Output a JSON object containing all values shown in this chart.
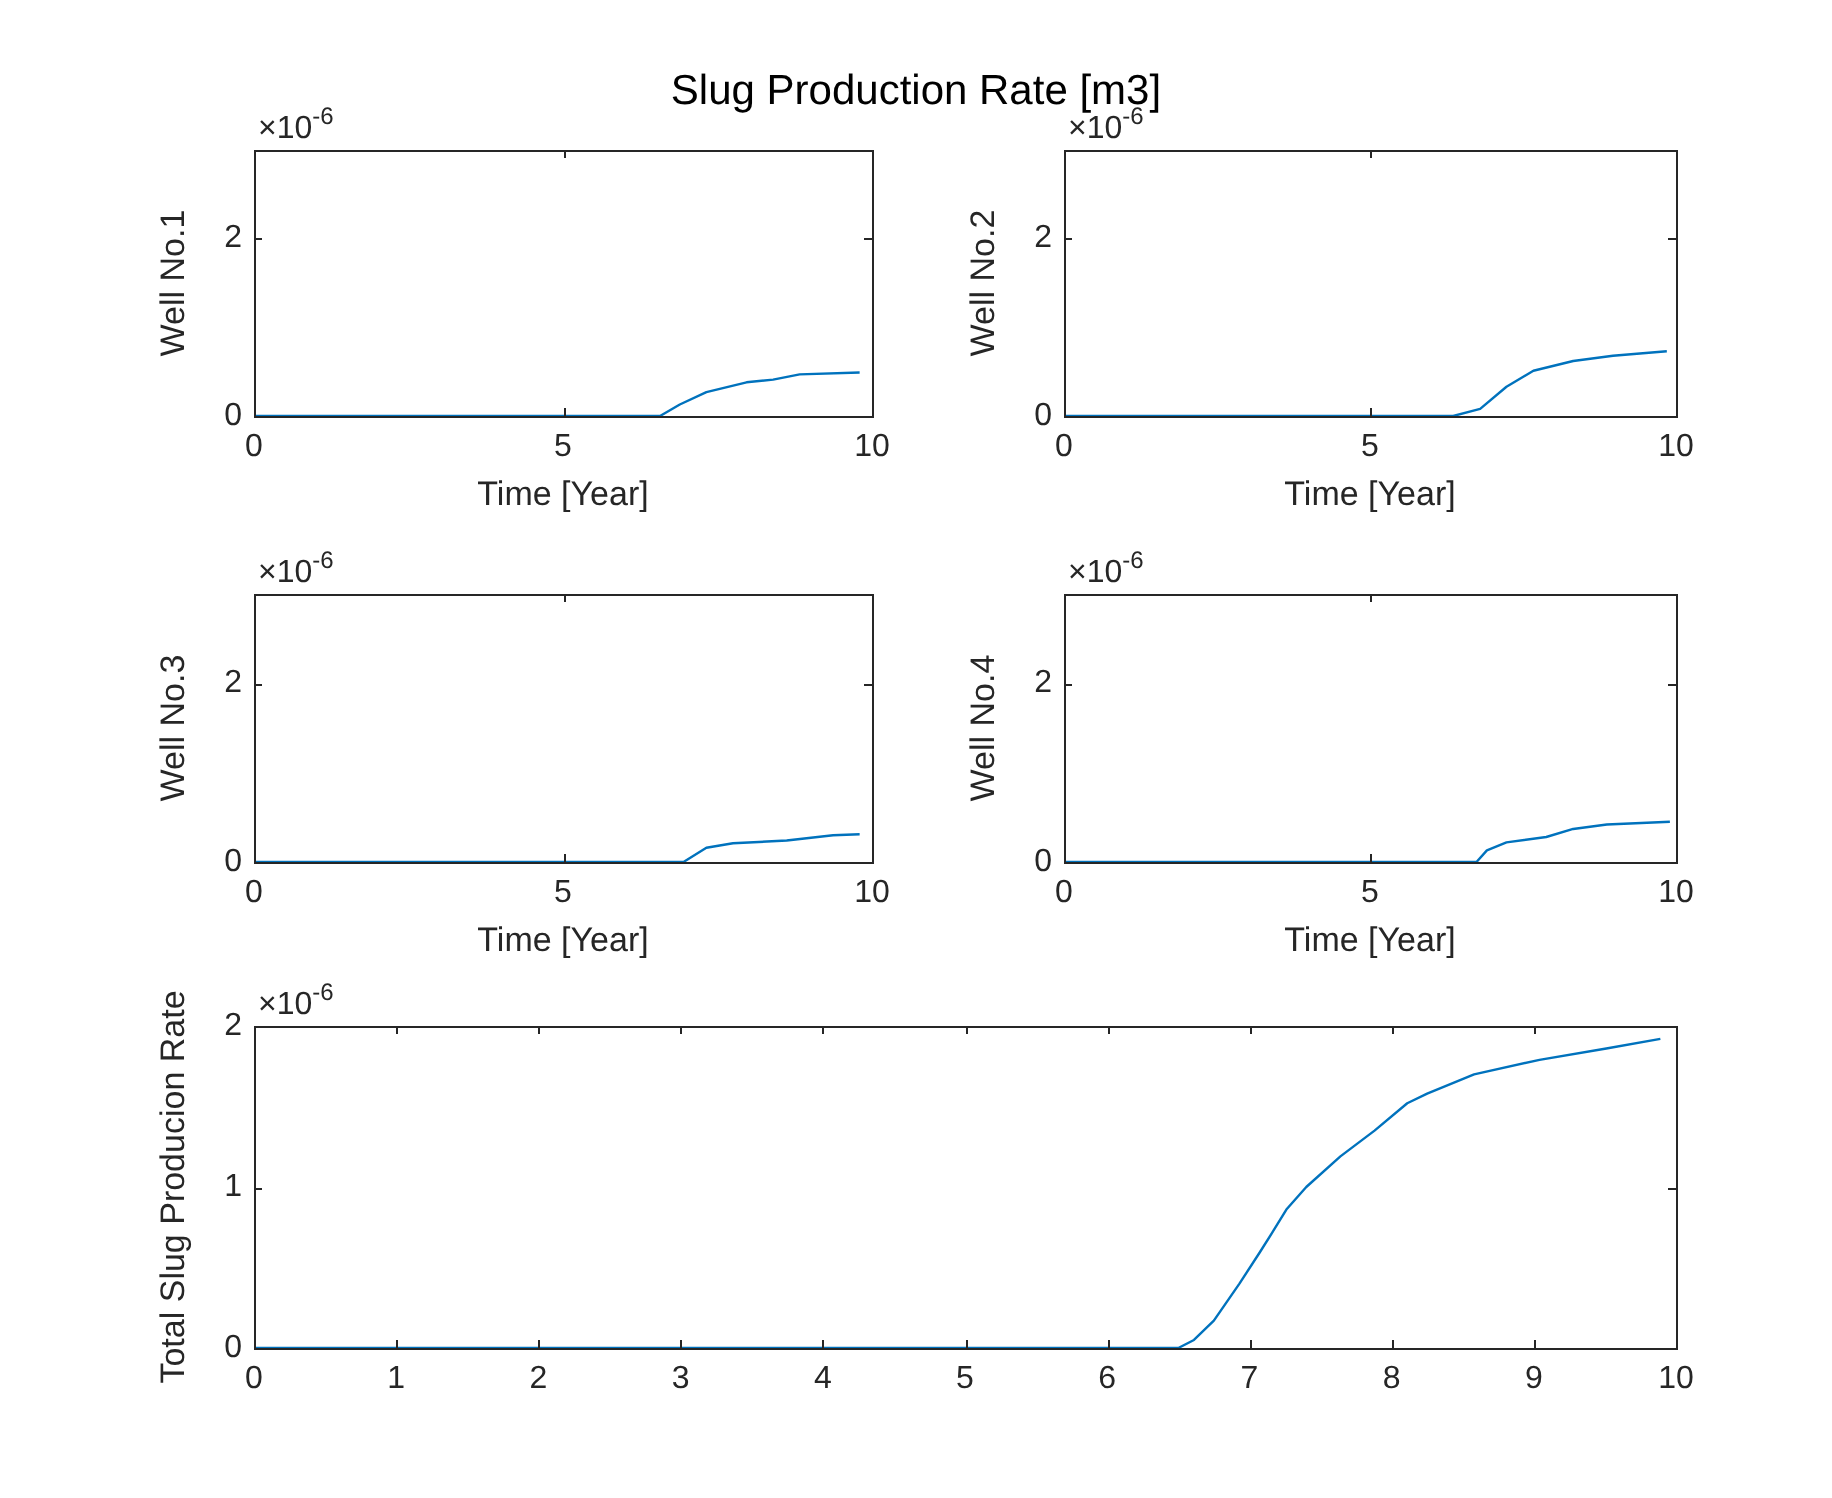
{
  "chart_data": [
    {
      "type": "line",
      "title": "Slug Production Rate [m3]",
      "xlabel": "Time [Year]",
      "ylabel": "Well No.1",
      "x": [
        0,
        6.4,
        6.57,
        6.89,
        7.32,
        7.97,
        8.4,
        8.83,
        9.8
      ],
      "series": [
        {
          "color": "#0072bd",
          "values": [
            0,
            0,
            0,
            0.13,
            0.27,
            0.38,
            0.41,
            0.47,
            0.49
          ]
        }
      ],
      "xlim": [
        0,
        10
      ],
      "ylim": [
        0,
        3
      ],
      "xticks": [
        0,
        5,
        10
      ],
      "yticks": [
        0,
        2
      ],
      "grid": false,
      "legend": false,
      "marker": "none",
      "annotations": [
        "×10$^{-6}$"
      ]
    },
    {
      "type": "line",
      "xlabel": "Time [Year]",
      "ylabel": "Well No.2",
      "x": [
        0,
        6.36,
        6.8,
        7.23,
        7.67,
        8.32,
        8.97,
        9.85
      ],
      "series": [
        {
          "color": "#0072bd",
          "values": [
            0,
            0,
            0.08,
            0.33,
            0.51,
            0.62,
            0.68,
            0.73
          ]
        }
      ],
      "xlim": [
        0,
        10
      ],
      "ylim": [
        0,
        3
      ],
      "xticks": [
        0,
        5,
        10
      ],
      "yticks": [
        0,
        2
      ],
      "grid": false,
      "legend": false,
      "marker": "none",
      "annotations": [
        "×10$^{-6}$"
      ]
    },
    {
      "type": "line",
      "xlabel": "Time [Year]",
      "ylabel": "Well No.3",
      "x": [
        0,
        6.95,
        7.32,
        7.75,
        8.62,
        9.37,
        9.8
      ],
      "series": [
        {
          "color": "#0072bd",
          "values": [
            0,
            0,
            0.16,
            0.21,
            0.24,
            0.3,
            0.31
          ]
        }
      ],
      "xlim": [
        0,
        10
      ],
      "ylim": [
        0,
        3
      ],
      "xticks": [
        0,
        5,
        10
      ],
      "yticks": [
        0,
        2
      ],
      "grid": false,
      "legend": false,
      "marker": "none",
      "annotations": [
        "×10$^{-6}$"
      ]
    },
    {
      "type": "line",
      "xlabel": "Time [Year]",
      "ylabel": "Well No.4",
      "x": [
        0,
        6.74,
        6.91,
        7.23,
        7.88,
        8.32,
        8.87,
        9.9
      ],
      "series": [
        {
          "color": "#0072bd",
          "values": [
            0,
            0,
            0.13,
            0.22,
            0.28,
            0.37,
            0.42,
            0.45
          ]
        }
      ],
      "xlim": [
        0,
        10
      ],
      "ylim": [
        0,
        3
      ],
      "xticks": [
        0,
        5,
        10
      ],
      "yticks": [
        0,
        2
      ],
      "grid": false,
      "legend": false,
      "marker": "none",
      "annotations": [
        "×10$^{-6}$"
      ]
    },
    {
      "type": "line",
      "ylabel": "Total Slug Producion Rate",
      "x": [
        0,
        6.5,
        6.61,
        6.75,
        6.93,
        7.07,
        7.17,
        7.26,
        7.4,
        7.64,
        7.88,
        8.11,
        8.25,
        8.58,
        9.04,
        9.51,
        9.89
      ],
      "series": [
        {
          "color": "#0072bd",
          "values": [
            0,
            0,
            0.05,
            0.17,
            0.4,
            0.59,
            0.73,
            0.86,
            1,
            1.19,
            1.35,
            1.52,
            1.58,
            1.7,
            1.79,
            1.86,
            1.92
          ]
        }
      ],
      "xlim": [
        0,
        10
      ],
      "ylim": [
        0,
        2
      ],
      "xticks": [
        0,
        1,
        2,
        3,
        4,
        5,
        6,
        7,
        8,
        9,
        10
      ],
      "yticks": [
        0,
        1,
        2
      ],
      "grid": false,
      "legend": false,
      "marker": "none",
      "annotations": [
        "×10$^{-6}$"
      ]
    }
  ]
}
